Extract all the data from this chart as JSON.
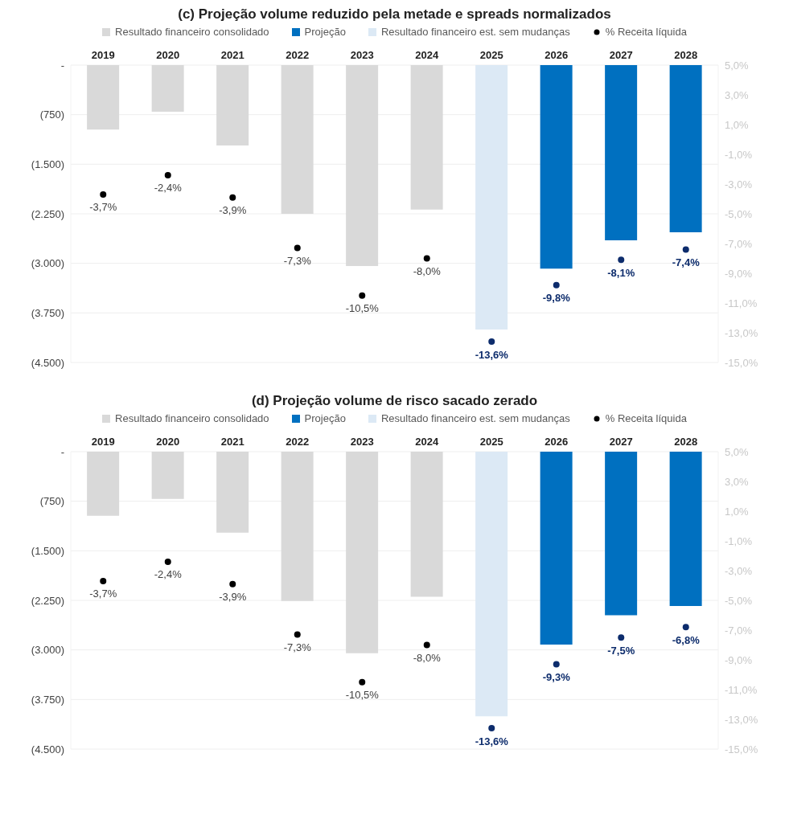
{
  "chart_data": [
    {
      "type": "bar",
      "title": "(c) Projeção volume reduzido pela metade e spreads normalizados",
      "categories": [
        "2019",
        "2020",
        "2021",
        "2022",
        "2023",
        "2024",
        "2025",
        "2026",
        "2027",
        "2028"
      ],
      "stacked": true,
      "legend": "top",
      "grid": "y",
      "series": [
        {
          "name": "Resultado financeiro consolidado",
          "color": "#d9d9d9",
          "values": [
            -975,
            -705,
            -1215,
            -2250,
            -3040,
            -2185,
            null,
            null,
            null,
            null
          ]
        },
        {
          "name": "Projeção",
          "color": "#0070c0",
          "values": [
            null,
            null,
            null,
            null,
            null,
            null,
            null,
            -3080,
            -2650,
            -2530
          ]
        },
        {
          "name": "Resultado financeiro est. sem mudanças",
          "color": "#dce9f5",
          "values": [
            null,
            null,
            null,
            null,
            null,
            null,
            -4000,
            null,
            null,
            null
          ]
        },
        {
          "name": "% Receita líquida",
          "type": "scatter",
          "axis": "y2",
          "marker": "circle",
          "color": "#000000",
          "colors": [
            "#000000",
            "#000000",
            "#000000",
            "#000000",
            "#000000",
            "#000000",
            "#0d2c6c",
            "#0d2c6c",
            "#0d2c6c",
            "#0d2c6c"
          ],
          "values": [
            -3.7,
            -2.4,
            -3.9,
            -7.3,
            -10.5,
            -8.0,
            -13.6,
            -9.8,
            -8.1,
            -7.4
          ],
          "value_labels": [
            "-3,7%",
            "-2,4%",
            "-3,9%",
            "-7,3%",
            "-10,5%",
            "-8,0%",
            "-13,6%",
            "-9,8%",
            "-8,1%",
            "-7,4%"
          ]
        }
      ],
      "ylim": [
        -4500,
        0
      ],
      "yticks": [
        {
          "value": 0,
          "label": "-"
        },
        {
          "value": -750,
          "label": "(750)"
        },
        {
          "value": -1500,
          "label": "(1.500)"
        },
        {
          "value": -2250,
          "label": "(2.250)"
        },
        {
          "value": -3000,
          "label": "(3.000)"
        },
        {
          "value": -3750,
          "label": "(3.750)"
        },
        {
          "value": -4500,
          "label": "(4.500)"
        }
      ],
      "y2lim": [
        -15,
        5
      ],
      "y2ticks": [
        {
          "value": 5,
          "label": "5,0%"
        },
        {
          "value": 3,
          "label": "3,0%"
        },
        {
          "value": 1,
          "label": "1,0%"
        },
        {
          "value": -1,
          "label": "-1,0%"
        },
        {
          "value": -3,
          "label": "-3,0%"
        },
        {
          "value": -5,
          "label": "-5,0%"
        },
        {
          "value": -7,
          "label": "-7,0%"
        },
        {
          "value": -9,
          "label": "-9,0%"
        },
        {
          "value": -11,
          "label": "-11,0%"
        },
        {
          "value": -13,
          "label": "-13,0%"
        },
        {
          "value": -15,
          "label": "-15,0%"
        }
      ]
    },
    {
      "type": "bar",
      "title": "(d) Projeção volume de risco sacado zerado",
      "categories": [
        "2019",
        "2020",
        "2021",
        "2022",
        "2023",
        "2024",
        "2025",
        "2026",
        "2027",
        "2028"
      ],
      "stacked": true,
      "legend": "top",
      "grid": "y",
      "series": [
        {
          "name": "Resultado financeiro consolidado",
          "color": "#d9d9d9",
          "values": [
            -970,
            -715,
            -1225,
            -2260,
            -3050,
            -2195,
            null,
            null,
            null,
            null
          ]
        },
        {
          "name": "Projeção",
          "color": "#0070c0",
          "values": [
            null,
            null,
            null,
            null,
            null,
            null,
            null,
            -2920,
            -2475,
            -2335
          ]
        },
        {
          "name": "Resultado financeiro est. sem mudanças",
          "color": "#dce9f5",
          "values": [
            null,
            null,
            null,
            null,
            null,
            null,
            -4005,
            null,
            null,
            null
          ]
        },
        {
          "name": "% Receita líquida",
          "type": "scatter",
          "axis": "y2",
          "marker": "circle",
          "color": "#000000",
          "colors": [
            "#000000",
            "#000000",
            "#000000",
            "#000000",
            "#000000",
            "#000000",
            "#0d2c6c",
            "#0d2c6c",
            "#0d2c6c",
            "#0d2c6c"
          ],
          "values": [
            -3.7,
            -2.4,
            -3.9,
            -7.3,
            -10.5,
            -8.0,
            -13.6,
            -9.3,
            -7.5,
            -6.8
          ],
          "value_labels": [
            "-3,7%",
            "-2,4%",
            "-3,9%",
            "-7,3%",
            "-10,5%",
            "-8,0%",
            "-13,6%",
            "-9,3%",
            "-7,5%",
            "-6,8%"
          ]
        }
      ],
      "ylim": [
        -4500,
        0
      ],
      "yticks": [
        {
          "value": 0,
          "label": "-"
        },
        {
          "value": -750,
          "label": "(750)"
        },
        {
          "value": -1500,
          "label": "(1.500)"
        },
        {
          "value": -2250,
          "label": "(2.250)"
        },
        {
          "value": -3000,
          "label": "(3.000)"
        },
        {
          "value": -3750,
          "label": "(3.750)"
        },
        {
          "value": -4500,
          "label": "(4.500)"
        }
      ],
      "y2lim": [
        -15,
        5
      ],
      "y2ticks": [
        {
          "value": 5,
          "label": "5,0%"
        },
        {
          "value": 3,
          "label": "3,0%"
        },
        {
          "value": 1,
          "label": "1,0%"
        },
        {
          "value": -1,
          "label": "-1,0%"
        },
        {
          "value": -3,
          "label": "-3,0%"
        },
        {
          "value": -5,
          "label": "-5,0%"
        },
        {
          "value": -7,
          "label": "-7,0%"
        },
        {
          "value": -9,
          "label": "-9,0%"
        },
        {
          "value": -11,
          "label": "-11,0%"
        },
        {
          "value": -13,
          "label": "-13,0%"
        },
        {
          "value": -15,
          "label": "-15,0%"
        }
      ]
    }
  ]
}
